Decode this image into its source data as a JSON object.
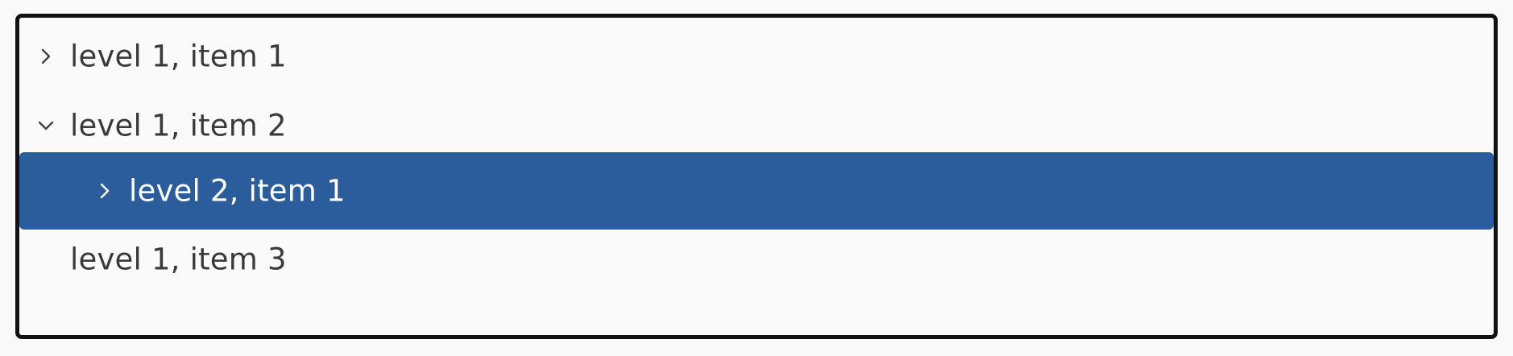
{
  "tree": {
    "items": [
      {
        "label": "level 1, item 1",
        "icon": "chevron-right-icon"
      },
      {
        "label": "level 1, item 2",
        "icon": "chevron-down-icon"
      },
      {
        "label": "level 2, item 1",
        "icon": "chevron-right-icon"
      },
      {
        "label": "level 1, item 3",
        "icon": ""
      }
    ]
  },
  "colors": {
    "selected_background": "#2b5c9c",
    "border": "#111111",
    "text": "#3a3a3a",
    "selected_text": "#ffffff"
  }
}
